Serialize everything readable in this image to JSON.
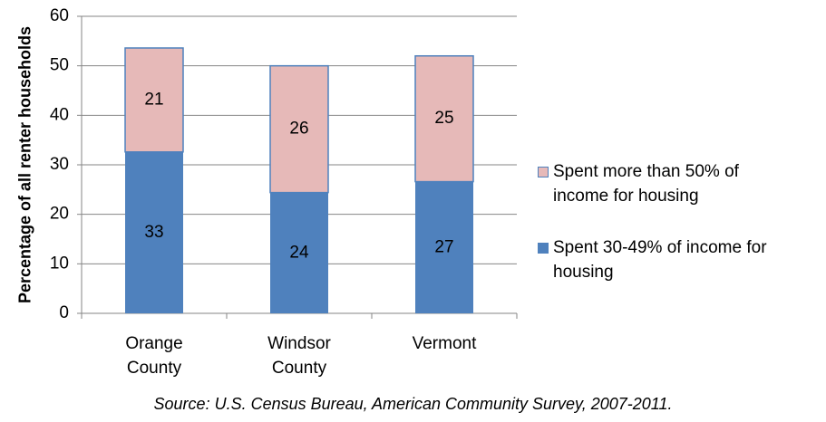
{
  "chart_data": {
    "type": "stacked_bar",
    "y_label": "Percentage of all renter households",
    "source": "Source: U.S. Census Bureau, American Community Survey, 2007-2011.",
    "categories": [
      "Orange County",
      "Windsor County",
      "Vermont"
    ],
    "series": [
      {
        "name": "Spent 30-49% of income for housing",
        "color": "#4f81bd",
        "values": [
          32.6,
          24.4,
          26.6
        ],
        "value_labels": [
          "33",
          "24",
          "27"
        ]
      },
      {
        "name": "Spent more than 50% of income for housing",
        "color": "#e6b9b8",
        "values": [
          21.0,
          25.6,
          25.4
        ],
        "value_labels": [
          "21",
          "26",
          "25"
        ]
      }
    ],
    "ylim": [
      0,
      60
    ],
    "yticks": [
      0,
      10,
      20,
      30,
      40,
      50,
      60
    ],
    "grid": true,
    "legend": "right"
  }
}
